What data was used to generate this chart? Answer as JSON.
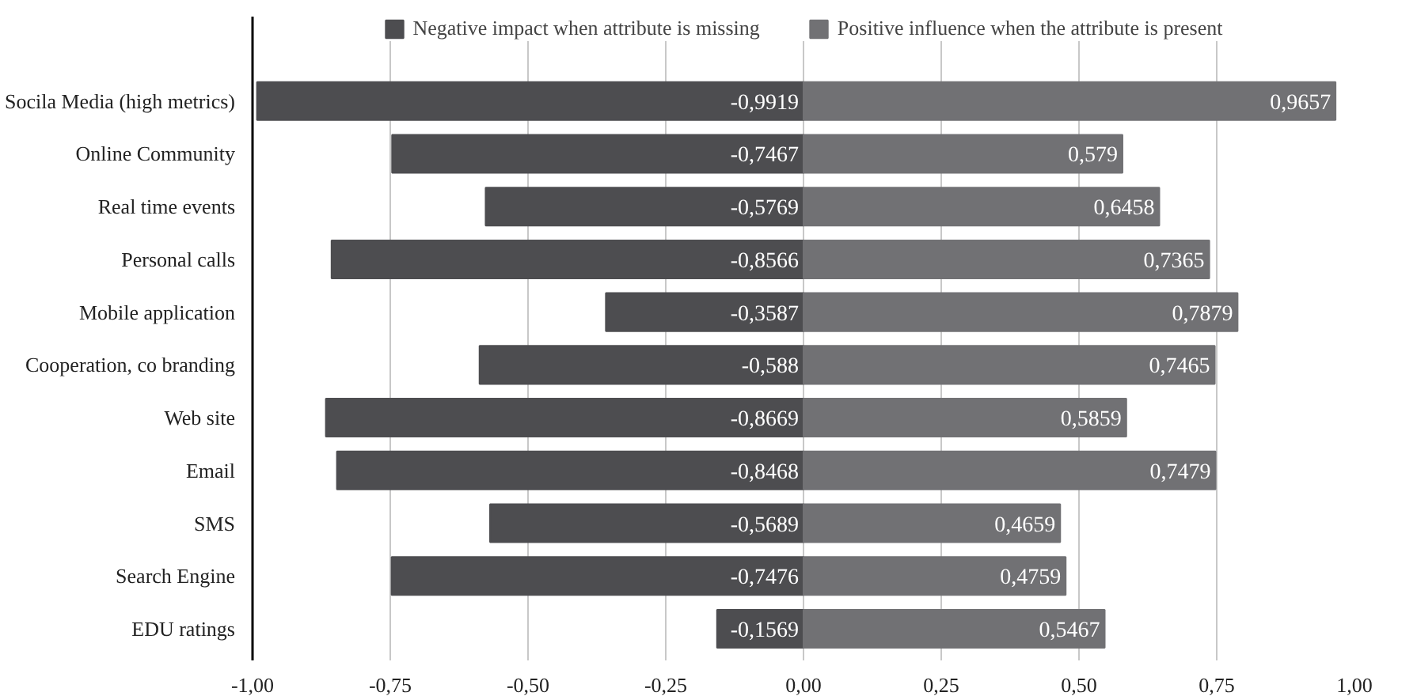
{
  "chart_data": {
    "type": "bar",
    "orientation": "horizontal",
    "categories": [
      "Socila Media (high metrics)",
      "Online Community",
      "Real time events",
      "Personal calls",
      "Mobile application",
      "Cooperation, co branding",
      "Web site",
      "Email",
      "SMS",
      "Search Engine",
      "EDU ratings"
    ],
    "series": [
      {
        "name": "Negative impact when attribute is missing",
        "color": "#4d4d50",
        "values": [
          -0.9919,
          -0.7467,
          -0.5769,
          -0.8566,
          -0.3587,
          -0.588,
          -0.8669,
          -0.8468,
          -0.5689,
          -0.7476,
          -0.1569
        ],
        "value_labels": [
          "-0,9919",
          "-0,7467",
          "-0,5769",
          "-0,8566",
          "-0,3587",
          "-0,588",
          "-0,8669",
          "-0,8468",
          "-0,5689",
          "-0,7476",
          "-0,1569"
        ]
      },
      {
        "name": "Positive influence when the attribute is present",
        "color": "#717174",
        "values": [
          0.9657,
          0.579,
          0.6458,
          0.7365,
          0.7879,
          0.7465,
          0.5859,
          0.7479,
          0.4659,
          0.4759,
          0.5467
        ],
        "value_labels": [
          "0,9657",
          "0,579",
          "0,6458",
          "0,7365",
          "0,7879",
          "0,7465",
          "0,5859",
          "0,7479",
          "0,4659",
          "0,4759",
          "0,5467"
        ]
      }
    ],
    "xlim": [
      -1,
      1
    ],
    "xticks": [
      {
        "value": -1,
        "label": "-1,00"
      },
      {
        "value": -0.75,
        "label": "-0,75"
      },
      {
        "value": -0.5,
        "label": "-0,50"
      },
      {
        "value": -0.25,
        "label": "-0,25"
      },
      {
        "value": 0,
        "label": "0,00"
      },
      {
        "value": 0.25,
        "label": "0,25"
      },
      {
        "value": 0.5,
        "label": "0,50"
      },
      {
        "value": 0.75,
        "label": "0,75"
      },
      {
        "value": 1,
        "label": "1,00"
      }
    ],
    "grid": "x",
    "legend": "top",
    "stacked": true
  }
}
